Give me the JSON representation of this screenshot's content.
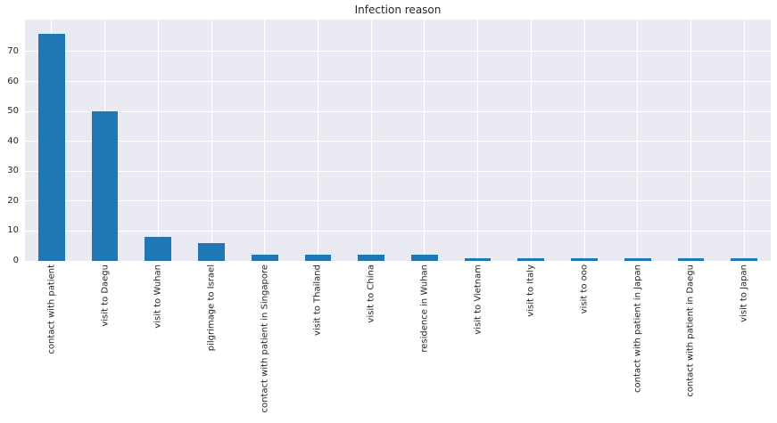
{
  "chart_data": {
    "type": "bar",
    "title": "Infection reason",
    "categories": [
      "contact with patient",
      "visit to Daegu",
      "visit to Wuhan",
      "pilgrimage to Israel",
      "contact with patient in Singapore",
      "visit to Thailand",
      "visit to China",
      "residence in Wuhan",
      "visit to Vietnam",
      "visit to Italy",
      "visit to ooo",
      "contact with patient in Japan",
      "contact with patient in Daegu",
      "visit to Japan"
    ],
    "values": [
      76,
      50,
      8,
      6,
      2,
      2,
      2,
      2,
      1,
      1,
      1,
      1,
      1,
      1
    ],
    "xlabel": "",
    "ylabel": "",
    "ylim": [
      0,
      80.7
    ],
    "yticks": [
      0,
      10,
      20,
      30,
      40,
      50,
      60,
      70
    ],
    "x_tick_rotation": 90,
    "grid": true,
    "legend": null,
    "bar_color": "#1f77b4",
    "plot_bg_color": "#eaeaf2",
    "grid_color": "#ffffff",
    "text_color": "#262626",
    "bar_width_fraction": 0.5
  }
}
